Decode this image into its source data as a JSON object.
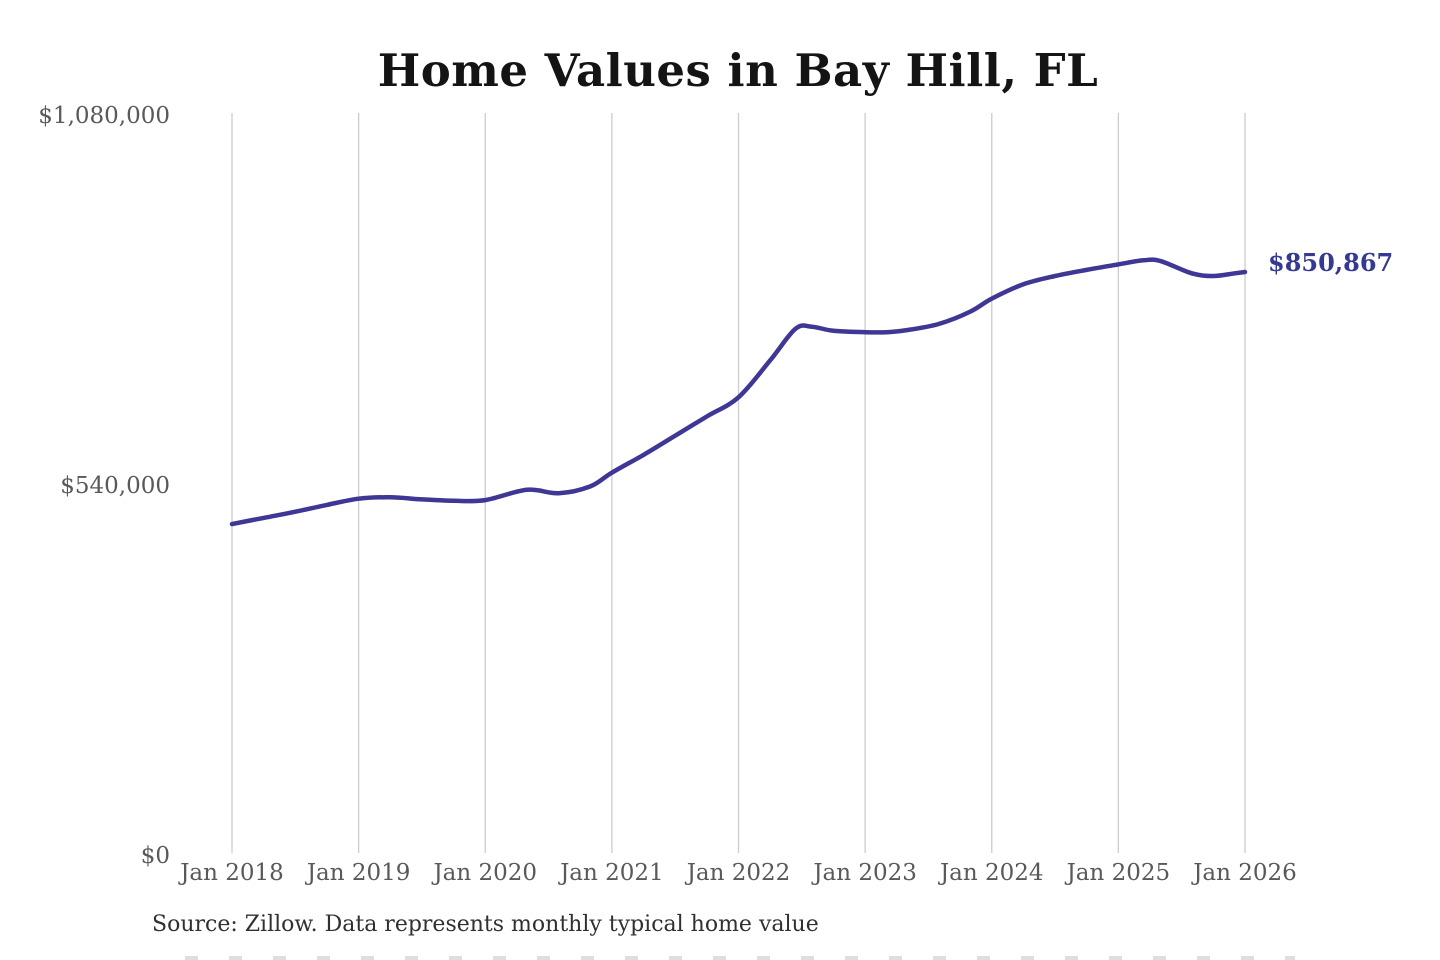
{
  "title": "Home Values in Bay Hill, FL",
  "source_note": "Source: Zillow. Data represents monthly typical home value",
  "colors": {
    "line": "#3f3795",
    "end_label": "#333a8f",
    "grid": "#cccccc",
    "axis_text": "#595959",
    "title_text": "#141414",
    "source_text": "#303030",
    "background": "#ffffff"
  },
  "chart_data": {
    "type": "line",
    "title": "Home Values in Bay Hill, FL",
    "xlabel": "",
    "ylabel": "",
    "grid": "vertical-only",
    "legend": "none",
    "xlim": [
      2018,
      2026
    ],
    "ylim": [
      0,
      1080000
    ],
    "x_ticks": [
      2018,
      2019,
      2020,
      2021,
      2022,
      2023,
      2024,
      2025,
      2026
    ],
    "x_tick_labels": [
      "Jan 2018",
      "Jan 2019",
      "Jan 2020",
      "Jan 2021",
      "Jan 2022",
      "Jan 2023",
      "Jan 2024",
      "Jan 2025",
      "Jan 2026"
    ],
    "y_ticks": [
      0,
      540000,
      1080000
    ],
    "y_tick_labels": [
      "$0",
      "$540,000",
      "$1,080,000"
    ],
    "x": [
      2018.0,
      2018.25,
      2018.5,
      2018.75,
      2019.0,
      2019.25,
      2019.5,
      2019.75,
      2020.0,
      2020.33,
      2020.58,
      2020.83,
      2021.0,
      2021.25,
      2021.5,
      2021.75,
      2022.0,
      2022.25,
      2022.45,
      2022.58,
      2022.75,
      2023.0,
      2023.17,
      2023.33,
      2023.58,
      2023.83,
      2024.0,
      2024.25,
      2024.5,
      2024.75,
      2025.0,
      2025.2,
      2025.33,
      2025.58,
      2025.75,
      2025.92,
      2026.0
    ],
    "values": [
      483000,
      492000,
      501000,
      511000,
      520000,
      522000,
      519000,
      517000,
      518000,
      533000,
      528000,
      538000,
      558000,
      584000,
      612000,
      640000,
      668000,
      722000,
      768000,
      771000,
      765000,
      763000,
      763000,
      766000,
      775000,
      793000,
      812000,
      833000,
      845000,
      854000,
      862000,
      868000,
      867000,
      849000,
      845000,
      849000,
      850867
    ],
    "end_value": 850867,
    "end_value_label": "$850,867"
  }
}
